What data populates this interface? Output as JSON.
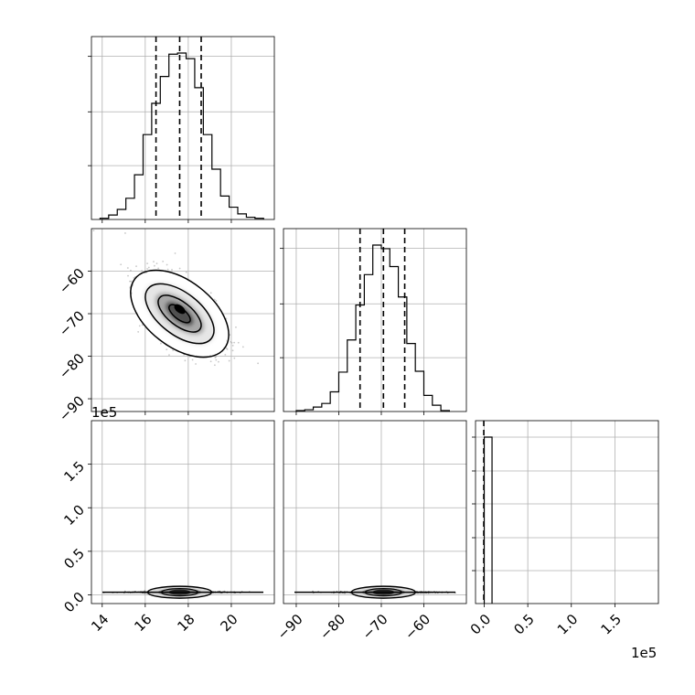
{
  "chart_data": {
    "type": "corner",
    "grid": true,
    "n_params": 3,
    "quantile_lines": [
      {
        "param": 0,
        "values": [
          16.5,
          17.6,
          18.6
        ]
      },
      {
        "param": 1,
        "values": [
          -75.0,
          -69.5,
          -64.5
        ]
      },
      {
        "param": 2,
        "values": [
          0.0
        ]
      }
    ],
    "axes": {
      "p0": {
        "range": [
          13.5,
          22.0
        ],
        "ticks": [
          14,
          16,
          18,
          20
        ],
        "tick_labels": [
          "14",
          "16",
          "18",
          "20"
        ]
      },
      "p1": {
        "range": [
          -93.0,
          -50.0
        ],
        "ticks": [
          -90,
          -80,
          -70,
          -60
        ],
        "tick_labels": [
          "−90",
          "−80",
          "−70",
          "−60"
        ]
      },
      "p2": {
        "range": [
          -0.1,
          2.0
        ],
        "ticks": [
          0.0,
          0.5,
          1.0,
          1.5
        ],
        "tick_labels": [
          "0.0",
          "0.5",
          "1.0",
          "1.5"
        ],
        "offset_label": "1e5"
      }
    },
    "histograms": [
      {
        "param": 0,
        "bin_edges": [
          13.9,
          14.3,
          14.7,
          15.1,
          15.5,
          15.9,
          16.3,
          16.7,
          17.1,
          17.5,
          17.9,
          18.3,
          18.7,
          19.1,
          19.5,
          19.9,
          20.3,
          20.7,
          21.1,
          21.5
        ],
        "counts": [
          1,
          4,
          9,
          19,
          40,
          76,
          104,
          128,
          148,
          149,
          144,
          118,
          76,
          45,
          21,
          11,
          5,
          2,
          1
        ]
      },
      {
        "param": 1,
        "bin_edges": [
          -90.0,
          -88.0,
          -86.0,
          -84.0,
          -82.0,
          -80.0,
          -78.0,
          -76.0,
          -74.0,
          -72.0,
          -70.0,
          -68.0,
          -66.0,
          -64.0,
          -62.0,
          -60.0,
          -58.0,
          -56.0,
          -54.0
        ],
        "counts": [
          1,
          2,
          5,
          9,
          22,
          44,
          80,
          119,
          153,
          186,
          182,
          162,
          128,
          76,
          45,
          18,
          7,
          1
        ]
      },
      {
        "param": 2,
        "bin_edges": [
          0.0,
          0.1
        ],
        "counts": [
          100
        ]
      }
    ],
    "scatter_panels": [
      {
        "x_param": 0,
        "y_param": 1,
        "center": [
          17.6,
          -70.0
        ],
        "correlation": "negative"
      },
      {
        "x_param": 0,
        "y_param": 2,
        "center": [
          17.6,
          0.03
        ],
        "correlation": "none"
      },
      {
        "x_param": 1,
        "y_param": 2,
        "center": [
          -69.5,
          0.03
        ],
        "correlation": "none"
      }
    ]
  }
}
